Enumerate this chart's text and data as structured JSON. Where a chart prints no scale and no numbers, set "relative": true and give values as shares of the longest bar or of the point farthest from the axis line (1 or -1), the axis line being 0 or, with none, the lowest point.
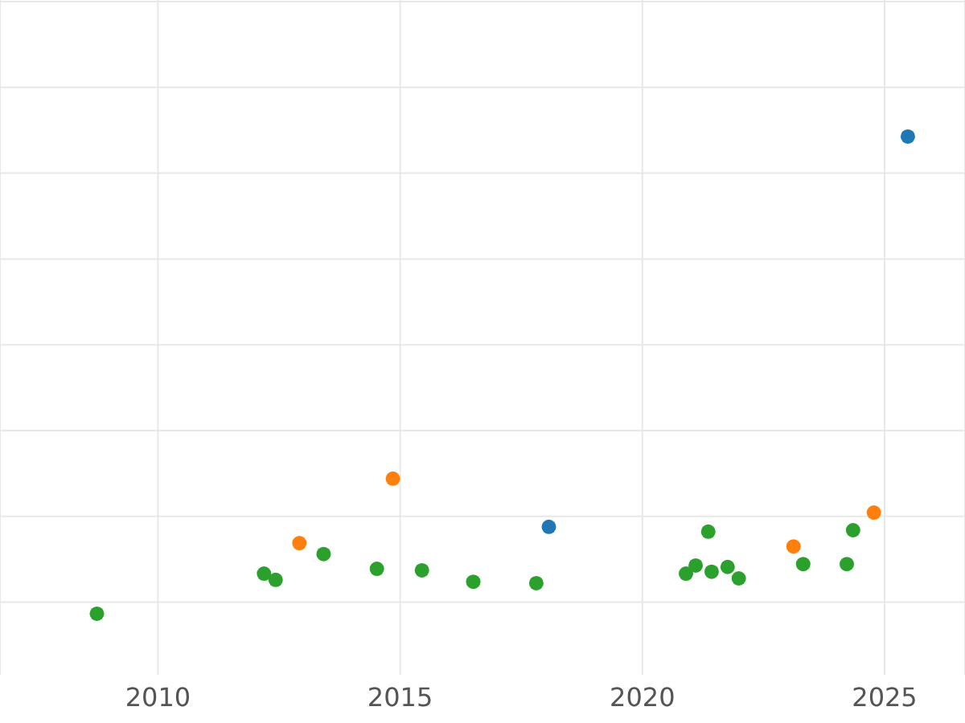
{
  "chart_data": {
    "type": "scatter",
    "relative": true,
    "xlim": [
      2006.74,
      2026.66
    ],
    "xticks": [
      2010,
      2015,
      2020,
      2025
    ],
    "grid": true,
    "marker": "circle",
    "series": [
      {
        "color": "#2ca02c",
        "x": [
          2008.74,
          2012.19,
          2012.43,
          2013.42,
          2014.52,
          2015.45,
          2016.51,
          2017.81,
          2020.9,
          2021.1,
          2021.36,
          2021.43,
          2021.76,
          2021.99,
          2023.32,
          2024.22,
          2024.35
        ],
        "values": [
          0,
          0.084,
          0.071,
          0.125,
          0.094,
          0.091,
          0.067,
          0.064,
          0.084,
          0.101,
          0.172,
          0.088,
          0.098,
          0.074,
          0.104,
          0.104,
          0.175
        ]
      },
      {
        "color": "#ff7f0e",
        "x": [
          2012.92,
          2014.85,
          2023.12,
          2024.78
        ],
        "values": [
          0.148,
          0.283,
          0.141,
          0.212
        ]
      },
      {
        "color": "#1f77b4",
        "x": [
          2018.07,
          2025.48
        ],
        "values": [
          0.182,
          1
        ]
      }
    ]
  }
}
